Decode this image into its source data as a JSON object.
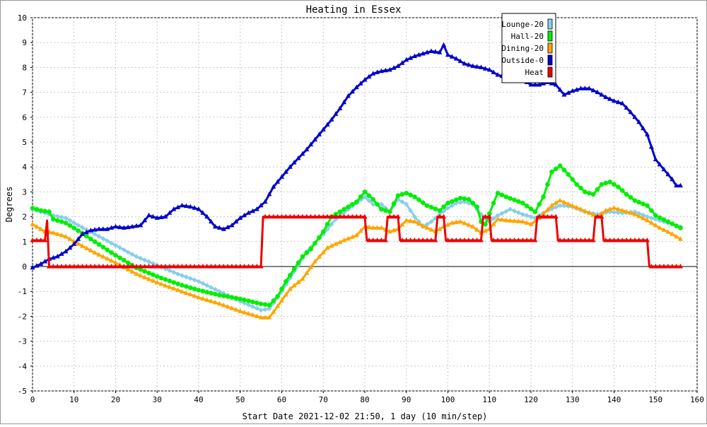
{
  "chart_data": {
    "type": "line",
    "title": "Heating in Essex",
    "xlabel": "Start Date 2021-12-02 21:50, 1 day (10 min/step)",
    "ylabel": "Degrees",
    "xlim": [
      0,
      160
    ],
    "ylim": [
      -5,
      10
    ],
    "x_ticks": [
      "0",
      "10",
      "20",
      "30",
      "40",
      "50",
      "60",
      "70",
      "80",
      "90",
      "100",
      "110",
      "120",
      "130",
      "140",
      "150",
      "160"
    ],
    "y_ticks": [
      "-5",
      "-4",
      "-3",
      "-2",
      "-1",
      "0",
      "1",
      "2",
      "3",
      "4",
      "5",
      "6",
      "7",
      "8",
      "9",
      "10"
    ],
    "grid": true,
    "legend_position": "top-right",
    "series": [
      {
        "name": "Lounge-20",
        "color": "#87ceeb",
        "marker": "diamond",
        "points": [
          [
            0,
            2.3
          ],
          [
            5,
            2.05
          ],
          [
            8,
            1.95
          ],
          [
            10,
            1.75
          ],
          [
            15,
            1.3
          ],
          [
            20,
            0.85
          ],
          [
            25,
            0.4
          ],
          [
            30,
            0.05
          ],
          [
            35,
            -0.3
          ],
          [
            40,
            -0.6
          ],
          [
            45,
            -1.0
          ],
          [
            50,
            -1.4
          ],
          [
            55,
            -1.75
          ],
          [
            57,
            -1.7
          ],
          [
            60,
            -1.0
          ],
          [
            63,
            -0.2
          ],
          [
            66,
            0.6
          ],
          [
            70,
            1.3
          ],
          [
            73,
            1.9
          ],
          [
            76,
            2.3
          ],
          [
            78,
            2.55
          ],
          [
            80,
            2.8
          ],
          [
            82,
            2.5
          ],
          [
            84,
            2.5
          ],
          [
            86,
            2.2
          ],
          [
            88,
            2.7
          ],
          [
            90,
            2.5
          ],
          [
            92,
            2.0
          ],
          [
            94,
            1.6
          ],
          [
            96,
            1.8
          ],
          [
            98,
            2.1
          ],
          [
            100,
            2.35
          ],
          [
            102,
            2.55
          ],
          [
            104,
            2.6
          ],
          [
            106,
            2.5
          ],
          [
            108,
            2.1
          ],
          [
            110,
            1.8
          ],
          [
            112,
            2.05
          ],
          [
            115,
            2.3
          ],
          [
            118,
            2.1
          ],
          [
            121,
            1.95
          ],
          [
            124,
            2.25
          ],
          [
            127,
            2.45
          ],
          [
            130,
            2.4
          ],
          [
            133,
            2.2
          ],
          [
            136,
            2.1
          ],
          [
            139,
            2.2
          ],
          [
            142,
            2.15
          ],
          [
            145,
            2.2
          ],
          [
            148,
            2.0
          ],
          [
            151,
            1.85
          ],
          [
            154,
            1.7
          ],
          [
            156,
            1.6
          ]
        ]
      },
      {
        "name": "Hall-20",
        "color": "#00ee00",
        "marker": "circle",
        "points": [
          [
            0,
            2.35
          ],
          [
            2,
            2.25
          ],
          [
            4,
            2.2
          ],
          [
            5,
            1.9
          ],
          [
            8,
            1.75
          ],
          [
            10,
            1.55
          ],
          [
            15,
            1.0
          ],
          [
            20,
            0.45
          ],
          [
            25,
            -0.05
          ],
          [
            30,
            -0.4
          ],
          [
            35,
            -0.7
          ],
          [
            40,
            -0.95
          ],
          [
            45,
            -1.15
          ],
          [
            50,
            -1.3
          ],
          [
            55,
            -1.5
          ],
          [
            57,
            -1.55
          ],
          [
            59,
            -1.2
          ],
          [
            61,
            -0.6
          ],
          [
            63,
            -0.1
          ],
          [
            65,
            0.4
          ],
          [
            67,
            0.7
          ],
          [
            70,
            1.4
          ],
          [
            72,
            2.0
          ],
          [
            75,
            2.3
          ],
          [
            78,
            2.6
          ],
          [
            80,
            3.0
          ],
          [
            82,
            2.7
          ],
          [
            84,
            2.3
          ],
          [
            86,
            2.2
          ],
          [
            88,
            2.85
          ],
          [
            90,
            2.95
          ],
          [
            92,
            2.8
          ],
          [
            95,
            2.45
          ],
          [
            98,
            2.25
          ],
          [
            100,
            2.55
          ],
          [
            103,
            2.75
          ],
          [
            105,
            2.7
          ],
          [
            107,
            2.4
          ],
          [
            108,
            1.8
          ],
          [
            109,
            1.7
          ],
          [
            111,
            2.55
          ],
          [
            112,
            2.95
          ],
          [
            114,
            2.8
          ],
          [
            118,
            2.55
          ],
          [
            121,
            2.2
          ],
          [
            123,
            2.8
          ],
          [
            125,
            3.8
          ],
          [
            127,
            4.05
          ],
          [
            129,
            3.7
          ],
          [
            131,
            3.3
          ],
          [
            133,
            3.0
          ],
          [
            135,
            2.9
          ],
          [
            137,
            3.3
          ],
          [
            139,
            3.4
          ],
          [
            141,
            3.2
          ],
          [
            143,
            2.9
          ],
          [
            145,
            2.65
          ],
          [
            148,
            2.45
          ],
          [
            150,
            2.05
          ],
          [
            153,
            1.8
          ],
          [
            156,
            1.55
          ]
        ]
      },
      {
        "name": "Dining-20",
        "color": "#ffa500",
        "marker": "triangle",
        "points": [
          [
            0,
            1.7
          ],
          [
            3,
            1.4
          ],
          [
            5,
            1.35
          ],
          [
            8,
            1.2
          ],
          [
            10,
            1.0
          ],
          [
            15,
            0.55
          ],
          [
            20,
            0.15
          ],
          [
            25,
            -0.3
          ],
          [
            30,
            -0.65
          ],
          [
            35,
            -0.95
          ],
          [
            40,
            -1.25
          ],
          [
            45,
            -1.5
          ],
          [
            50,
            -1.8
          ],
          [
            55,
            -2.05
          ],
          [
            57,
            -2.05
          ],
          [
            59,
            -1.6
          ],
          [
            62,
            -0.9
          ],
          [
            65,
            -0.5
          ],
          [
            68,
            0.2
          ],
          [
            71,
            0.75
          ],
          [
            75,
            1.05
          ],
          [
            78,
            1.25
          ],
          [
            80,
            1.6
          ],
          [
            82,
            1.55
          ],
          [
            84,
            1.55
          ],
          [
            86,
            1.4
          ],
          [
            88,
            1.5
          ],
          [
            90,
            1.85
          ],
          [
            92,
            1.8
          ],
          [
            95,
            1.55
          ],
          [
            97,
            1.4
          ],
          [
            99,
            1.6
          ],
          [
            101,
            1.75
          ],
          [
            103,
            1.8
          ],
          [
            106,
            1.6
          ],
          [
            108,
            1.35
          ],
          [
            110,
            1.5
          ],
          [
            112,
            1.9
          ],
          [
            114,
            1.85
          ],
          [
            118,
            1.8
          ],
          [
            120,
            1.7
          ],
          [
            122,
            1.95
          ],
          [
            125,
            2.45
          ],
          [
            127,
            2.65
          ],
          [
            129,
            2.5
          ],
          [
            132,
            2.3
          ],
          [
            134,
            2.15
          ],
          [
            136,
            2.0
          ],
          [
            138,
            2.25
          ],
          [
            140,
            2.35
          ],
          [
            142,
            2.25
          ],
          [
            145,
            2.1
          ],
          [
            148,
            1.85
          ],
          [
            151,
            1.55
          ],
          [
            154,
            1.3
          ],
          [
            156,
            1.1
          ]
        ]
      },
      {
        "name": "Outside-0",
        "color": "#0000cd",
        "marker": "triangle",
        "points": [
          [
            0,
            -0.05
          ],
          [
            2,
            0.1
          ],
          [
            4,
            0.3
          ],
          [
            6,
            0.4
          ],
          [
            8,
            0.6
          ],
          [
            10,
            0.9
          ],
          [
            12,
            1.3
          ],
          [
            14,
            1.45
          ],
          [
            16,
            1.5
          ],
          [
            18,
            1.5
          ],
          [
            20,
            1.6
          ],
          [
            22,
            1.55
          ],
          [
            24,
            1.6
          ],
          [
            26,
            1.65
          ],
          [
            28,
            2.05
          ],
          [
            30,
            1.95
          ],
          [
            32,
            2.0
          ],
          [
            34,
            2.3
          ],
          [
            36,
            2.45
          ],
          [
            38,
            2.4
          ],
          [
            40,
            2.3
          ],
          [
            42,
            2.0
          ],
          [
            44,
            1.6
          ],
          [
            46,
            1.5
          ],
          [
            48,
            1.65
          ],
          [
            50,
            1.95
          ],
          [
            52,
            2.15
          ],
          [
            54,
            2.3
          ],
          [
            56,
            2.6
          ],
          [
            58,
            3.2
          ],
          [
            60,
            3.6
          ],
          [
            62,
            4.0
          ],
          [
            64,
            4.35
          ],
          [
            66,
            4.7
          ],
          [
            68,
            5.1
          ],
          [
            70,
            5.5
          ],
          [
            72,
            5.9
          ],
          [
            74,
            6.35
          ],
          [
            76,
            6.85
          ],
          [
            78,
            7.2
          ],
          [
            80,
            7.5
          ],
          [
            82,
            7.75
          ],
          [
            84,
            7.85
          ],
          [
            86,
            7.9
          ],
          [
            88,
            8.05
          ],
          [
            90,
            8.3
          ],
          [
            92,
            8.45
          ],
          [
            94,
            8.55
          ],
          [
            96,
            8.65
          ],
          [
            98,
            8.6
          ],
          [
            99,
            8.9
          ],
          [
            100,
            8.5
          ],
          [
            102,
            8.35
          ],
          [
            104,
            8.15
          ],
          [
            106,
            8.05
          ],
          [
            108,
            8.0
          ],
          [
            110,
            7.9
          ],
          [
            112,
            7.7
          ],
          [
            114,
            7.6
          ],
          [
            116,
            7.55
          ],
          [
            118,
            7.5
          ],
          [
            120,
            7.3
          ],
          [
            122,
            7.3
          ],
          [
            124,
            7.4
          ],
          [
            126,
            7.3
          ],
          [
            128,
            6.9
          ],
          [
            130,
            7.05
          ],
          [
            132,
            7.15
          ],
          [
            134,
            7.15
          ],
          [
            136,
            7.0
          ],
          [
            138,
            6.8
          ],
          [
            140,
            6.65
          ],
          [
            142,
            6.55
          ],
          [
            144,
            6.2
          ],
          [
            146,
            5.8
          ],
          [
            148,
            5.3
          ],
          [
            150,
            4.3
          ],
          [
            152,
            3.9
          ],
          [
            154,
            3.5
          ],
          [
            155,
            3.25
          ],
          [
            156,
            3.25
          ]
        ]
      },
      {
        "name": "Heat",
        "color": "#ee0000",
        "marker": "triangle",
        "points": [
          [
            0,
            1.05
          ],
          [
            3,
            1.05
          ],
          [
            3.5,
            1.85
          ],
          [
            4,
            0.0
          ],
          [
            55,
            0.0
          ],
          [
            55.5,
            2.0
          ],
          [
            80,
            2.0
          ],
          [
            80.5,
            1.05
          ],
          [
            85,
            1.05
          ],
          [
            85.5,
            2.0
          ],
          [
            88,
            2.0
          ],
          [
            88.5,
            1.05
          ],
          [
            97,
            1.05
          ],
          [
            97.5,
            2.0
          ],
          [
            99,
            2.0
          ],
          [
            99.5,
            1.05
          ],
          [
            108,
            1.05
          ],
          [
            108.5,
            2.0
          ],
          [
            110,
            2.0
          ],
          [
            110.5,
            1.05
          ],
          [
            121,
            1.05
          ],
          [
            121.5,
            2.0
          ],
          [
            126,
            2.0
          ],
          [
            126.5,
            1.05
          ],
          [
            135,
            1.05
          ],
          [
            135.5,
            2.0
          ],
          [
            137,
            2.0
          ],
          [
            137.5,
            1.05
          ],
          [
            148,
            1.05
          ],
          [
            148.5,
            0.0
          ],
          [
            156,
            0.0
          ]
        ]
      }
    ]
  }
}
